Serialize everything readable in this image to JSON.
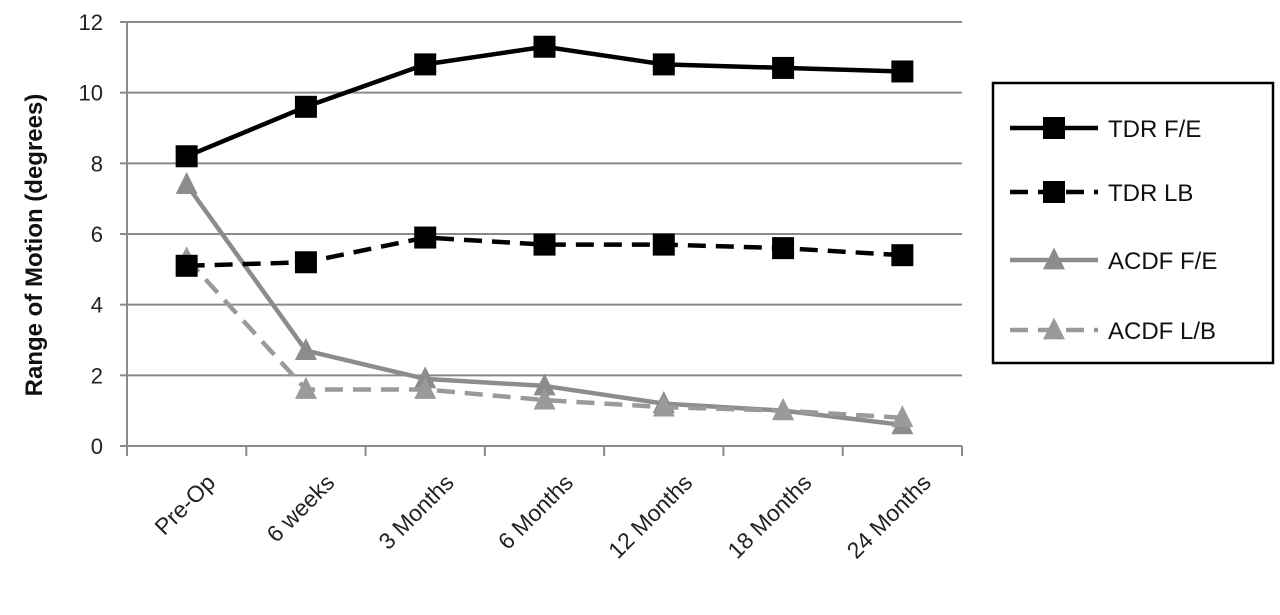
{
  "chart_data": {
    "type": "line",
    "title": "",
    "xlabel": "",
    "ylabel": "Range of Motion (degrees)",
    "ylim": [
      0,
      12
    ],
    "yticks": [
      0,
      2,
      4,
      6,
      8,
      10,
      12
    ],
    "grid": true,
    "legend_position": "right",
    "categories": [
      "Pre-Op",
      "6 weeks",
      "3 Months",
      "6 Months",
      "12 Months",
      "18 Months",
      "24 Months"
    ],
    "series": [
      {
        "name": "TDR F/E",
        "values": [
          8.2,
          9.6,
          10.8,
          11.3,
          10.8,
          10.7,
          10.6
        ],
        "color": "#000000",
        "dash": "solid",
        "marker": "square"
      },
      {
        "name": "TDR LB",
        "values": [
          5.1,
          5.2,
          5.9,
          5.7,
          5.7,
          5.6,
          5.4
        ],
        "color": "#000000",
        "dash": "dashed",
        "marker": "square"
      },
      {
        "name": "ACDF F/E",
        "values": [
          7.4,
          2.7,
          1.9,
          1.7,
          1.2,
          1.0,
          0.6
        ],
        "color": "#8c8c8c",
        "dash": "solid",
        "marker": "triangle"
      },
      {
        "name": "ACDF L/B",
        "values": [
          5.3,
          1.6,
          1.6,
          1.3,
          1.1,
          1.0,
          0.8
        ],
        "color": "#9a9a9a",
        "dash": "dashed",
        "marker": "triangle"
      }
    ]
  }
}
